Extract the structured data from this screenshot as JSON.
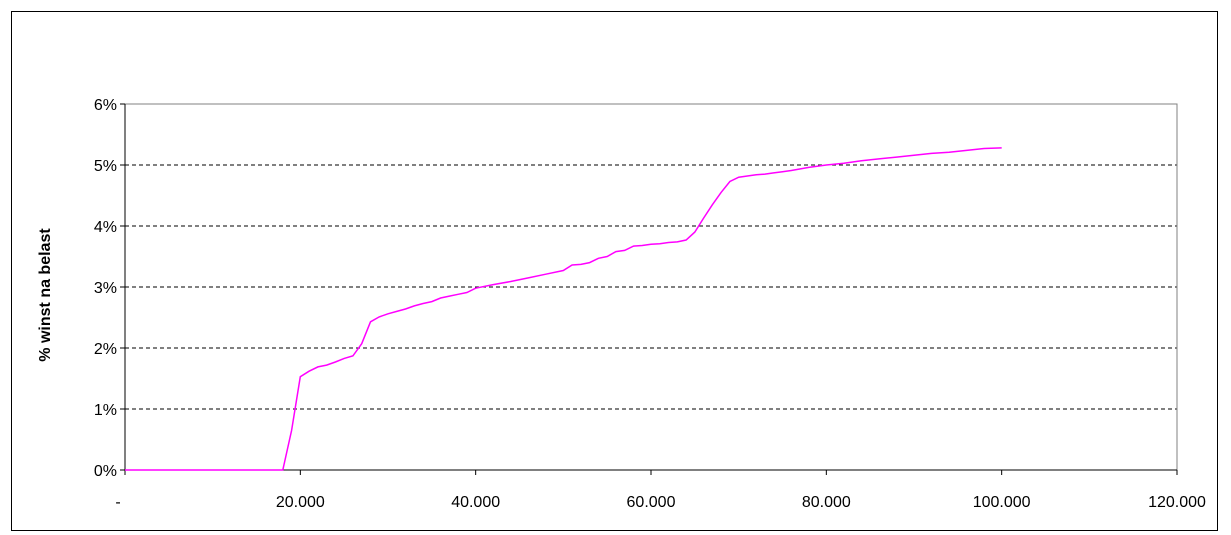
{
  "chart_data": {
    "type": "line",
    "title": "",
    "xlabel": "",
    "ylabel": "% winst na belast",
    "xlim": [
      0,
      120000
    ],
    "ylim": [
      0,
      0.06
    ],
    "x_ticks": [
      0,
      20000,
      40000,
      60000,
      80000,
      100000,
      120000
    ],
    "x_tick_labels": [
      "-",
      "20.000",
      "40.000",
      "60.000",
      "80.000",
      "100.000",
      "120.000"
    ],
    "y_ticks": [
      0,
      0.01,
      0.02,
      0.03,
      0.04,
      0.05,
      0.06
    ],
    "y_tick_labels": [
      "0%",
      "1%",
      "2%",
      "3%",
      "4%",
      "5%",
      "6%"
    ],
    "grid": "horizontal dashed",
    "line_color": "#ff00ff",
    "series": [
      {
        "x": [
          0,
          18000,
          19000,
          20000,
          21000,
          22000,
          23000,
          24000,
          25000,
          26000,
          27000,
          28000,
          29000,
          30000,
          31000,
          32000,
          33000,
          34000,
          35000,
          36000,
          37000,
          38000,
          39000,
          40000,
          42000,
          44000,
          46000,
          48000,
          50000,
          51000,
          52000,
          53000,
          54000,
          55000,
          56000,
          57000,
          58000,
          59000,
          60000,
          61000,
          62000,
          63000,
          64000,
          65000,
          66000,
          67000,
          68000,
          69000,
          70000,
          71000,
          72000,
          73000,
          74000,
          75000,
          76000,
          78000,
          80000,
          82000,
          84000,
          86000,
          88000,
          90000,
          92000,
          94000,
          96000,
          98000,
          100000
        ],
        "y": [
          0,
          0,
          0.0065,
          0.0153,
          0.0162,
          0.0169,
          0.0172,
          0.0177,
          0.0183,
          0.0187,
          0.0207,
          0.0243,
          0.0251,
          0.0256,
          0.026,
          0.0264,
          0.0269,
          0.0273,
          0.0276,
          0.0282,
          0.0285,
          0.0288,
          0.0291,
          0.0298,
          0.0304,
          0.0309,
          0.0315,
          0.0321,
          0.0327,
          0.0336,
          0.0337,
          0.034,
          0.0347,
          0.035,
          0.0358,
          0.036,
          0.0367,
          0.0368,
          0.037,
          0.0371,
          0.0373,
          0.0374,
          0.0377,
          0.039,
          0.0413,
          0.0435,
          0.0455,
          0.0473,
          0.048,
          0.0482,
          0.0484,
          0.0485,
          0.0487,
          0.0489,
          0.0491,
          0.0496,
          0.05,
          0.0503,
          0.0507,
          0.051,
          0.0513,
          0.0516,
          0.0519,
          0.0521,
          0.0524,
          0.0527,
          0.0528
        ]
      }
    ]
  }
}
